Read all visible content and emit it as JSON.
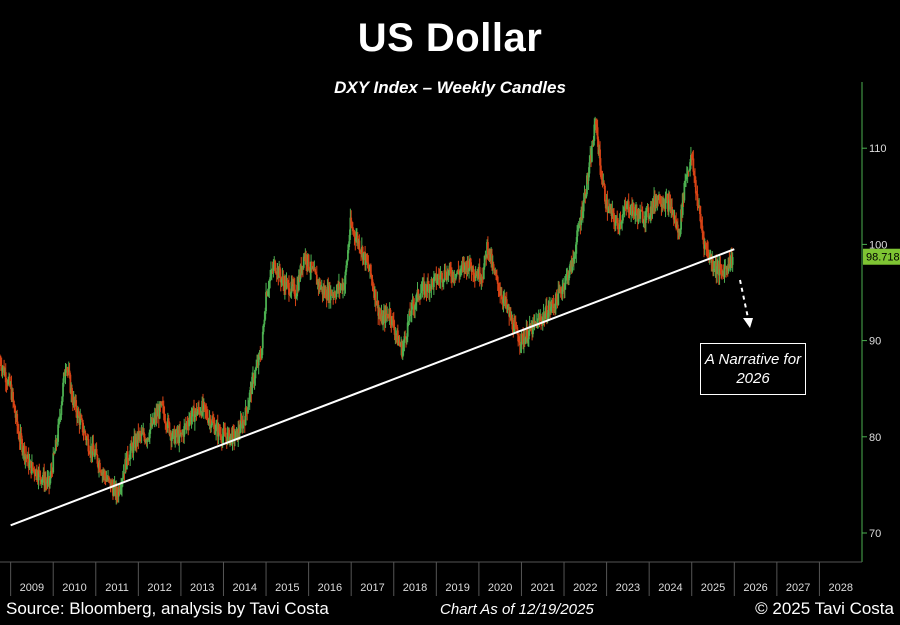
{
  "title": "US Dollar",
  "subtitle": "DXY Index – Weekly Candles",
  "annotation": "A Narrative for 2026",
  "footer": {
    "source": "Source: Bloomberg, analysis by Tavi Costa",
    "as_of": "Chart As of 12/19/2025",
    "copyright": "© 2025 Tavi Costa"
  },
  "colors": {
    "background": "#000000",
    "up": "#4caf50",
    "down": "#d84315",
    "trendline": "#ffffff",
    "last_price_tag": "#7ec433",
    "axis": "#4caf50"
  },
  "chart_data": {
    "type": "candlestick",
    "title": "US Dollar",
    "subtitle": "DXY Index – Weekly Candles",
    "x_ticks": [
      "2009",
      "2010",
      "2011",
      "2012",
      "2013",
      "2014",
      "2015",
      "2016",
      "2017",
      "2018",
      "2019",
      "2020",
      "2021",
      "2022",
      "2023",
      "2024",
      "2025",
      "2026",
      "2027",
      "2028"
    ],
    "y_ticks": [
      70,
      80,
      90,
      100,
      110
    ],
    "ylim": [
      67,
      116
    ],
    "xlim": [
      2008.75,
      2029.0
    ],
    "last_price": "98.718",
    "series": {
      "x": [
        2008.75,
        2009.0,
        2009.2,
        2009.45,
        2009.7,
        2009.9,
        2010.1,
        2010.3,
        2010.45,
        2010.6,
        2010.85,
        2011.0,
        2011.2,
        2011.35,
        2011.5,
        2011.75,
        2012.0,
        2012.2,
        2012.4,
        2012.55,
        2012.8,
        2013.0,
        2013.2,
        2013.5,
        2013.8,
        2014.0,
        2014.3,
        2014.5,
        2014.7,
        2014.9,
        2015.0,
        2015.2,
        2015.4,
        2015.7,
        2015.9,
        2016.1,
        2016.35,
        2016.6,
        2016.85,
        2016.98,
        2017.2,
        2017.45,
        2017.7,
        2017.9,
        2018.1,
        2018.2,
        2018.4,
        2018.6,
        2018.9,
        2019.2,
        2019.5,
        2019.75,
        2019.95,
        2020.1,
        2020.2,
        2020.35,
        2020.6,
        2020.85,
        2021.0,
        2021.2,
        2021.4,
        2021.6,
        2021.8,
        2022.0,
        2022.2,
        2022.4,
        2022.6,
        2022.75,
        2022.85,
        2023.0,
        2023.25,
        2023.5,
        2023.75,
        2023.95,
        2024.2,
        2024.5,
        2024.7,
        2024.85,
        2025.0,
        2025.15,
        2025.3,
        2025.5,
        2025.7,
        2025.85,
        2025.97
      ],
      "close": [
        88,
        85,
        80,
        77,
        76,
        75,
        80,
        88,
        84,
        82,
        79,
        78,
        76,
        75,
        74,
        78,
        80,
        80,
        82,
        83,
        80,
        80,
        82,
        83,
        81,
        80,
        80,
        82,
        86,
        89,
        95,
        98,
        96,
        95,
        99,
        97,
        95,
        95,
        96,
        102,
        100,
        97,
        92,
        93,
        90,
        89,
        93,
        95,
        96,
        97,
        97,
        98,
        97,
        97,
        100,
        97,
        94,
        91,
        90,
        91,
        92,
        93,
        94,
        96,
        98,
        103,
        108,
        113,
        108,
        104,
        102,
        104,
        103,
        103,
        105,
        104,
        101,
        107,
        109,
        104,
        100,
        98,
        97,
        98,
        98.7
      ],
      "trendline": [
        [
          2009.0,
          70.8
        ],
        [
          2026.0,
          99.5
        ]
      ]
    },
    "annotation": "A Narrative for 2026",
    "projection": "dashed arrow down from late 2025"
  }
}
